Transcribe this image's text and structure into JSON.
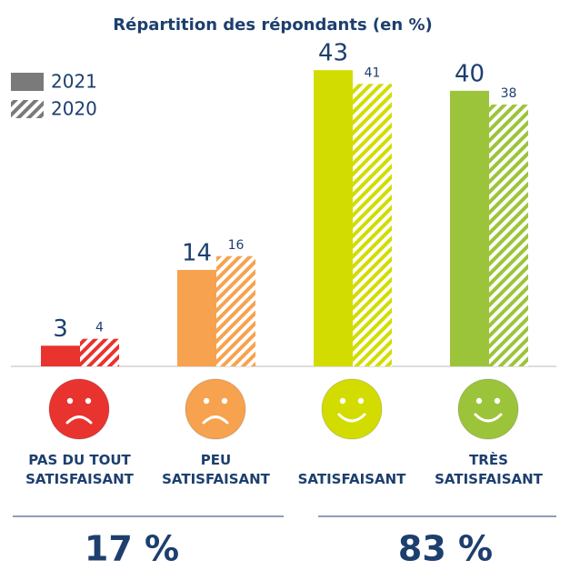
{
  "chart_data": {
    "type": "bar",
    "title": "Répartition des répondants (en %)",
    "categories": [
      "PAS DU TOUT SATISFAISANT",
      "PEU SATISFAISANT",
      "SATISFAISANT",
      "TRÈS SATISFAISANT"
    ],
    "category_colors": [
      "#e8332f",
      "#f7a24f",
      "#d3dc00",
      "#9cc43a"
    ],
    "series": [
      {
        "name": "2021",
        "color": "#7a7a7a",
        "values": [
          3,
          14,
          43,
          40
        ]
      },
      {
        "name": "2020",
        "color": "#7a7a7a",
        "values": [
          4,
          16,
          41,
          38
        ]
      }
    ],
    "ylim": [
      0,
      45
    ],
    "annotations": [
      "17 %",
      "83 %"
    ]
  }
}
